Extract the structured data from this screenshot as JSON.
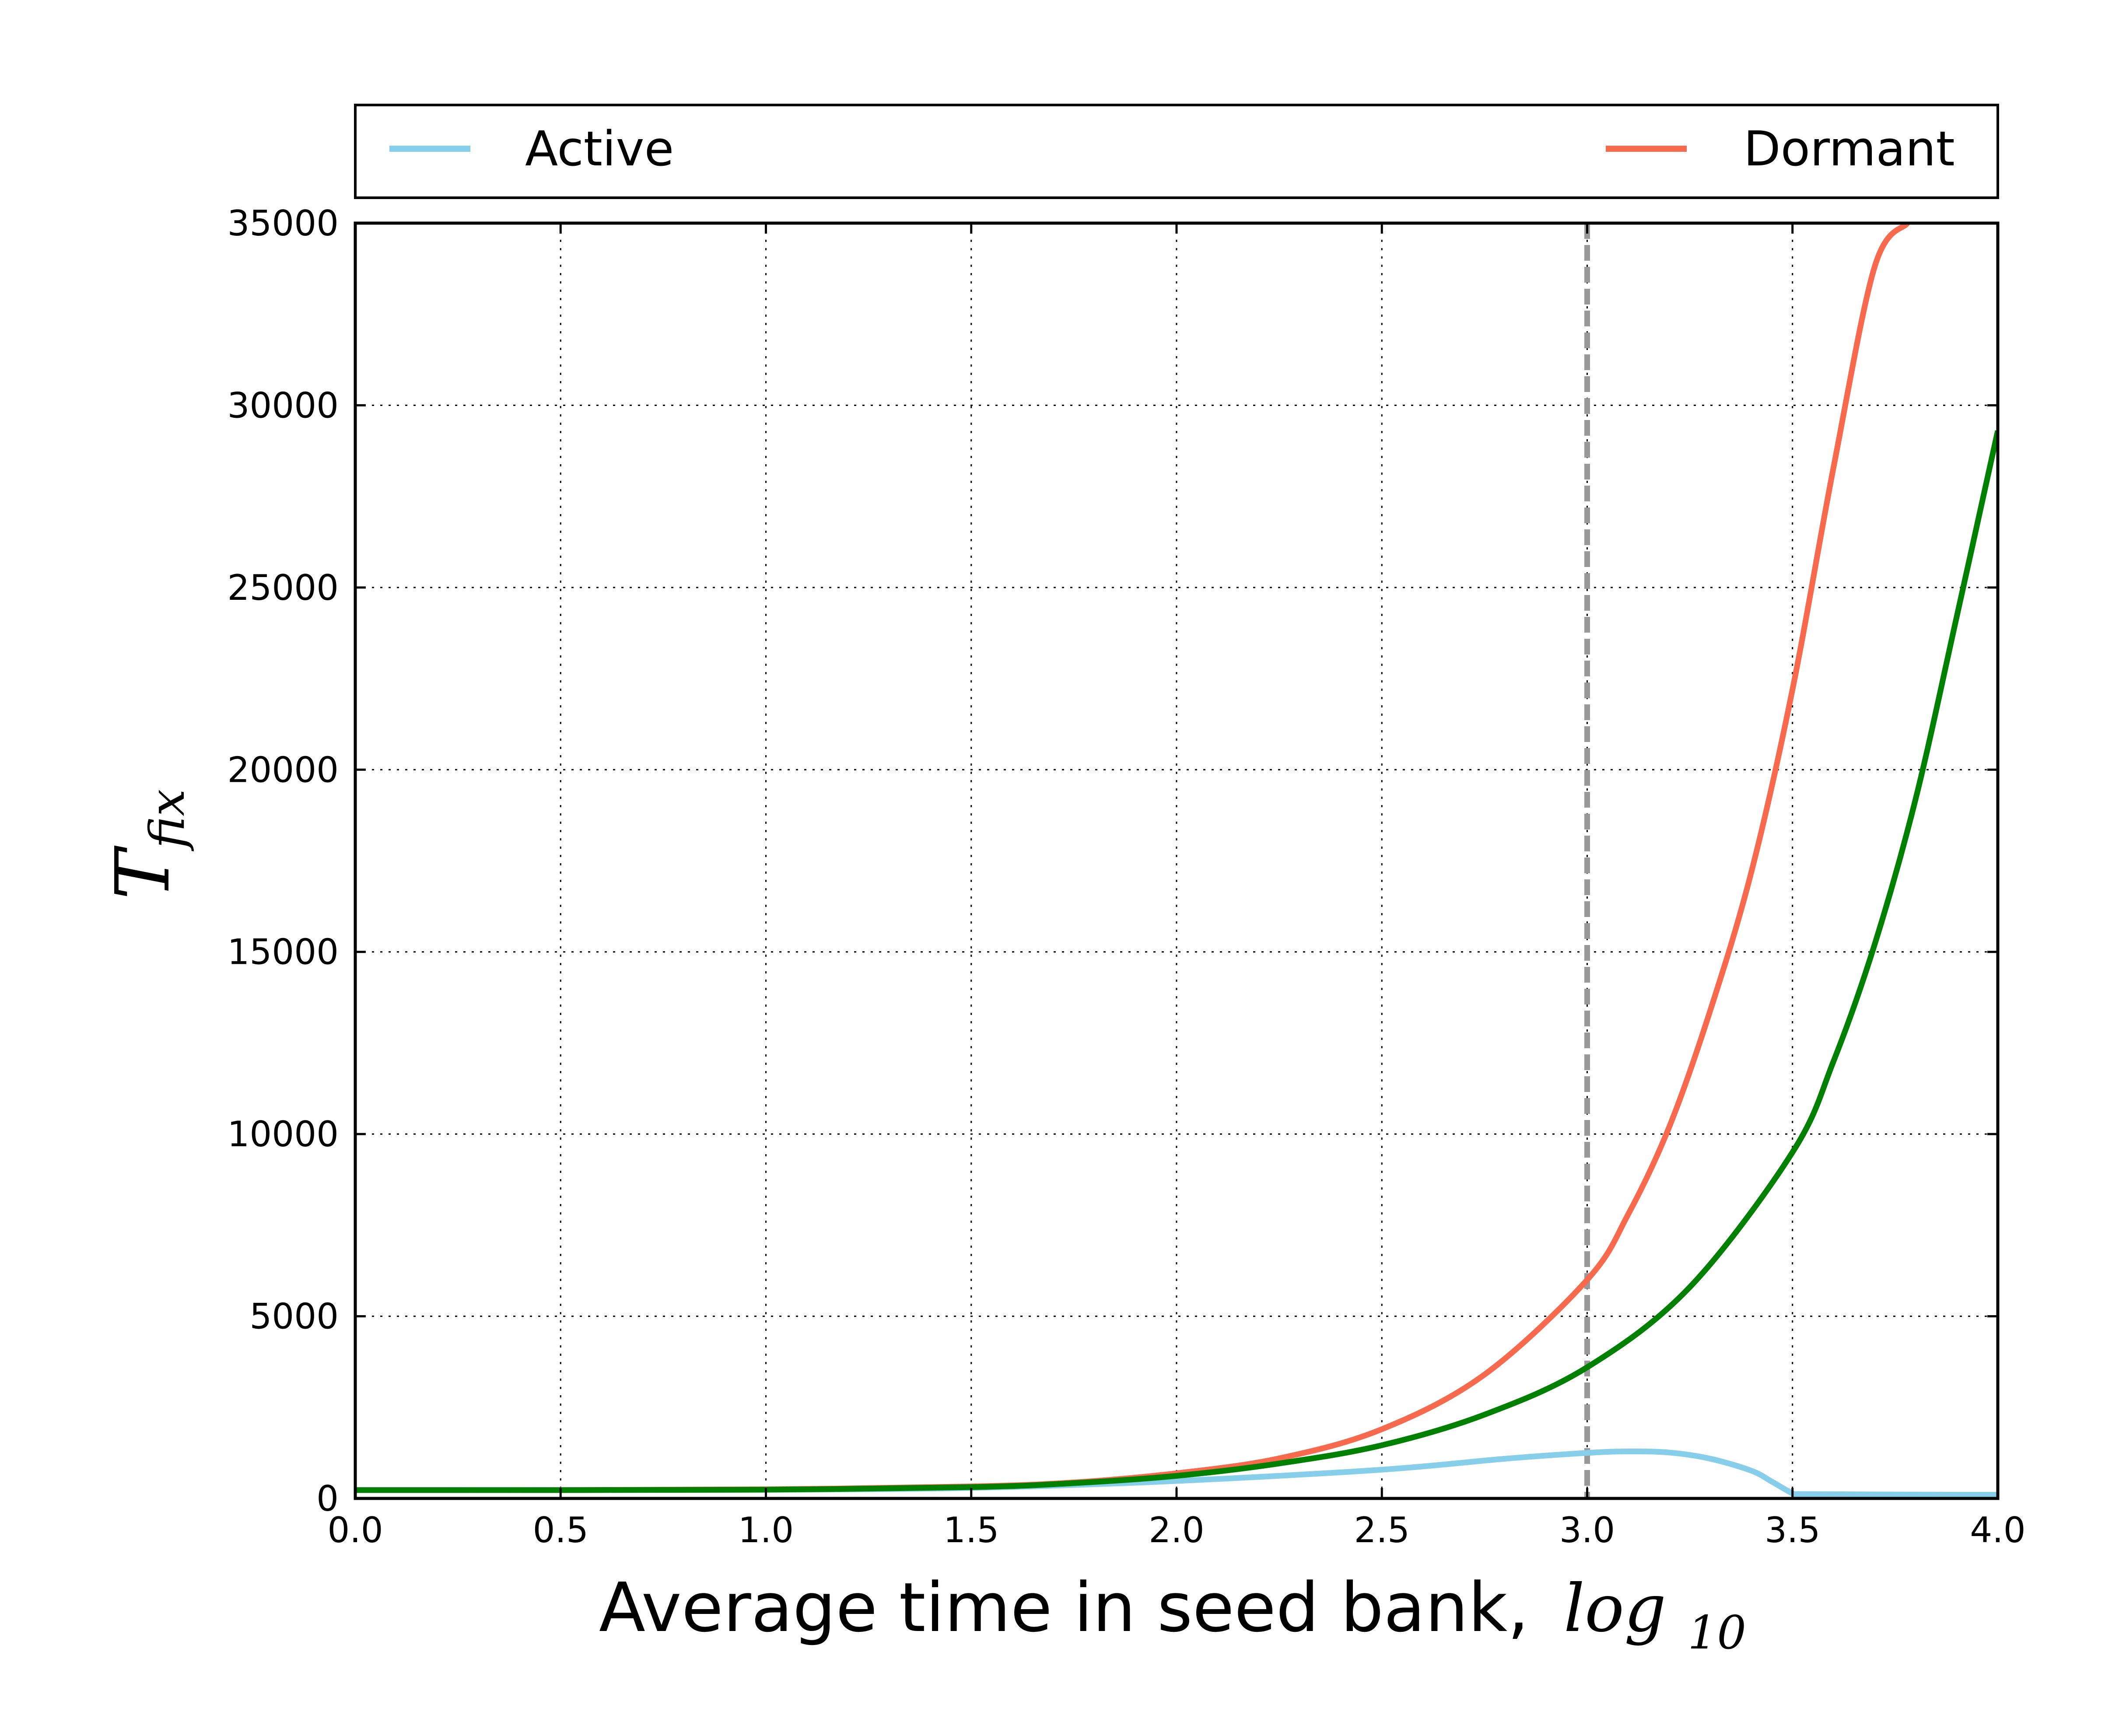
{
  "chart_data": {
    "type": "line",
    "xlabel": "Average time in seed bank,",
    "xlabel_math": "log",
    "xlabel_math_sub": "10",
    "ylabel": "T",
    "ylabel_sub": "fix",
    "xlim": [
      0.0,
      4.0
    ],
    "ylim": [
      0,
      35000
    ],
    "xticks": [
      0.0,
      0.5,
      1.0,
      1.5,
      2.0,
      2.5,
      3.0,
      3.5,
      4.0
    ],
    "xtick_labels": [
      "0.0",
      "0.5",
      "1.0",
      "1.5",
      "2.0",
      "2.5",
      "3.0",
      "3.5",
      "4.0"
    ],
    "yticks": [
      0,
      5000,
      10000,
      15000,
      20000,
      25000,
      30000,
      35000
    ],
    "ytick_labels": [
      "0",
      "5000",
      "10000",
      "15000",
      "20000",
      "25000",
      "30000",
      "35000"
    ],
    "grid": true,
    "legend_position": "top, above plot",
    "vline": {
      "x": 3.0,
      "style": "dashed",
      "color": "#999999"
    },
    "series": [
      {
        "name": "Active",
        "color": "#87CEEB",
        "in_legend": true,
        "points": [
          [
            0.0,
            230
          ],
          [
            0.5,
            230
          ],
          [
            1.0,
            240
          ],
          [
            1.5,
            290
          ],
          [
            2.0,
            480
          ],
          [
            2.5,
            790
          ],
          [
            2.8,
            1090
          ],
          [
            3.0,
            1250
          ],
          [
            3.1,
            1290
          ],
          [
            3.2,
            1260
          ],
          [
            3.3,
            1090
          ],
          [
            3.4,
            760
          ],
          [
            3.45,
            460
          ],
          [
            3.5,
            140
          ],
          [
            3.52,
            120
          ],
          [
            3.7,
            110
          ],
          [
            4.0,
            100
          ]
        ]
      },
      {
        "name": "Dormant",
        "color": "#F76A4E",
        "in_legend": true,
        "points": [
          [
            0.0,
            230
          ],
          [
            0.5,
            230
          ],
          [
            1.0,
            250
          ],
          [
            1.5,
            330
          ],
          [
            1.75,
            440
          ],
          [
            2.0,
            690
          ],
          [
            2.25,
            1100
          ],
          [
            2.5,
            1900
          ],
          [
            2.75,
            3400
          ],
          [
            3.0,
            6000
          ],
          [
            3.1,
            7800
          ],
          [
            3.2,
            10200
          ],
          [
            3.3,
            13400
          ],
          [
            3.4,
            17200
          ],
          [
            3.5,
            22200
          ],
          [
            3.6,
            28300
          ],
          [
            3.7,
            33800
          ],
          [
            3.78,
            35000
          ]
        ]
      },
      {
        "name": "",
        "color": "#008000",
        "in_legend": false,
        "points": [
          [
            0.0,
            230
          ],
          [
            0.5,
            230
          ],
          [
            1.0,
            240
          ],
          [
            1.5,
            310
          ],
          [
            1.75,
            420
          ],
          [
            2.0,
            620
          ],
          [
            2.25,
            960
          ],
          [
            2.5,
            1460
          ],
          [
            2.75,
            2300
          ],
          [
            3.0,
            3600
          ],
          [
            3.25,
            5800
          ],
          [
            3.5,
            9500
          ],
          [
            3.6,
            12000
          ],
          [
            3.7,
            15200
          ],
          [
            3.8,
            19200
          ],
          [
            3.9,
            24200
          ],
          [
            4.0,
            29300
          ]
        ]
      }
    ]
  }
}
